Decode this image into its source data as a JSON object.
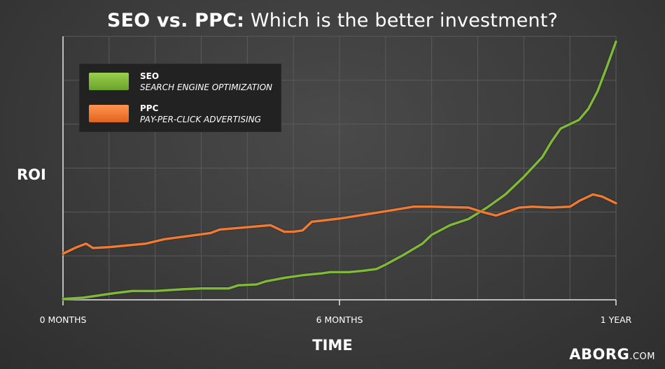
{
  "chart_data": {
    "type": "line",
    "title_bold": "SEO vs. PPC:",
    "title_rest": " Which is the better investment?",
    "ylabel": "ROI",
    "xlabel": "TIME",
    "x_ticks": [
      {
        "label": "0 MONTHS",
        "value": 0
      },
      {
        "label": "6 MONTHS",
        "value": 6
      },
      {
        "label": "1 YEAR",
        "value": 12
      }
    ],
    "xlim": [
      0,
      12
    ],
    "ylim": [
      0,
      6
    ],
    "grid": true,
    "legend_position": "top-left",
    "series": [
      {
        "name": "SEO",
        "description": "SEARCH ENGINE OPTIMIZATION",
        "color": "#7fb83a",
        "x": [
          0,
          0.45,
          0.9,
          1.1,
          1.5,
          2.0,
          2.6,
          3.0,
          3.6,
          3.8,
          4.2,
          4.4,
          4.8,
          5.2,
          5.6,
          5.8,
          6.2,
          6.5,
          6.8,
          7.0,
          7.4,
          7.8,
          8.0,
          8.4,
          8.8,
          9.2,
          9.6,
          10.0,
          10.4,
          10.6,
          10.8,
          11.2,
          11.4,
          11.6,
          11.8,
          12.0
        ],
        "y": [
          0.02,
          0.05,
          0.12,
          0.15,
          0.2,
          0.2,
          0.24,
          0.26,
          0.26,
          0.33,
          0.35,
          0.42,
          0.5,
          0.56,
          0.6,
          0.63,
          0.63,
          0.66,
          0.7,
          0.8,
          1.03,
          1.28,
          1.48,
          1.7,
          1.84,
          2.1,
          2.4,
          2.8,
          3.25,
          3.6,
          3.9,
          4.1,
          4.35,
          4.75,
          5.3,
          5.88
        ]
      },
      {
        "name": "PPC",
        "description": "PAY-PER-CLICK ADVERTISING",
        "color": "#ee7a34",
        "x": [
          0,
          0.3,
          0.5,
          0.65,
          1.0,
          1.8,
          2.2,
          3.2,
          3.4,
          4.5,
          4.8,
          5.0,
          5.2,
          5.4,
          5.6,
          6.0,
          6.6,
          7.2,
          7.6,
          8.0,
          8.8,
          9.1,
          9.4,
          9.9,
          10.2,
          10.6,
          11.0,
          11.2,
          11.4,
          11.5,
          11.7,
          12.0
        ],
        "y": [
          1.05,
          1.2,
          1.28,
          1.18,
          1.2,
          1.28,
          1.38,
          1.52,
          1.6,
          1.7,
          1.55,
          1.55,
          1.58,
          1.78,
          1.8,
          1.85,
          1.95,
          2.05,
          2.12,
          2.12,
          2.1,
          2.0,
          1.92,
          2.1,
          2.12,
          2.1,
          2.12,
          2.25,
          2.35,
          2.4,
          2.35,
          2.2
        ]
      }
    ]
  },
  "brand": {
    "name": "ABORG",
    "domain": ".COM"
  }
}
